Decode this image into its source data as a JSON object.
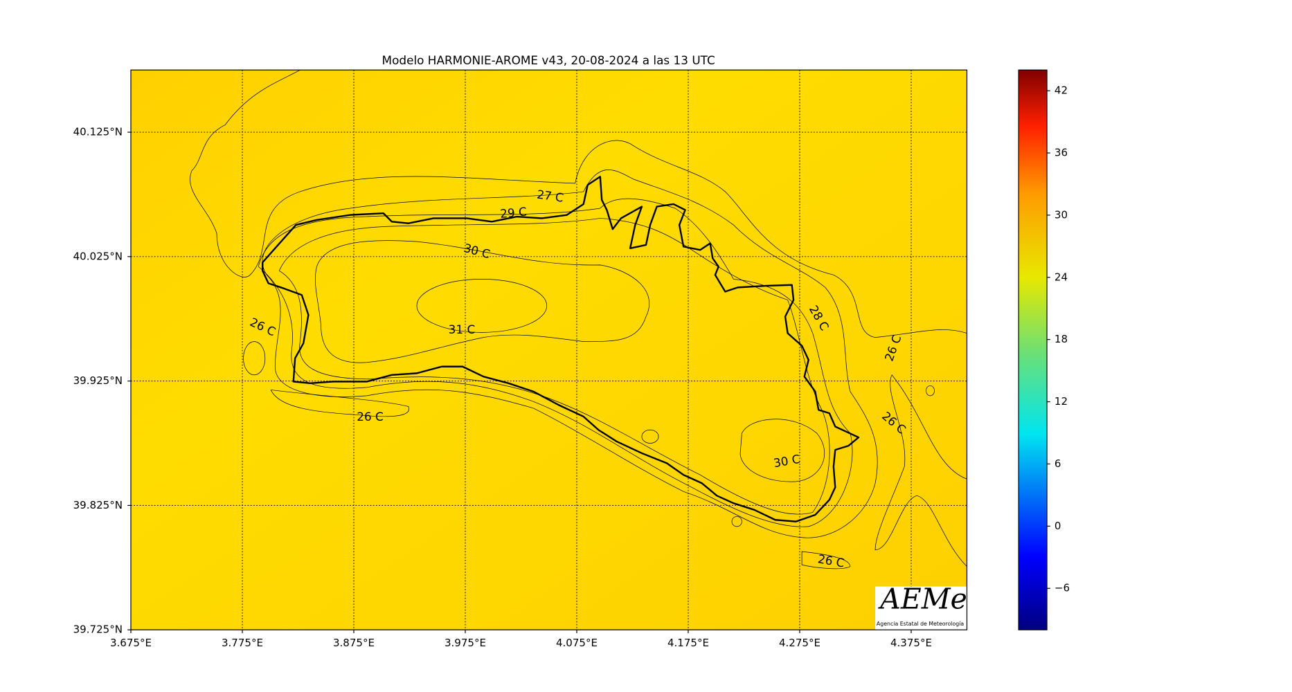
{
  "title": "Modelo HARMONIE-AROME v43, 20-08-2024 a las 13 UTC",
  "map": {
    "xlim": [
      3.675,
      4.425
    ],
    "ylim": [
      39.725,
      40.175
    ],
    "grid": true,
    "xticks": [
      {
        "value": 3.675,
        "label": "3.675°E"
      },
      {
        "value": 3.775,
        "label": "3.775°E"
      },
      {
        "value": 3.875,
        "label": "3.875°E"
      },
      {
        "value": 3.975,
        "label": "3.975°E"
      },
      {
        "value": 4.075,
        "label": "4.075°E"
      },
      {
        "value": 4.175,
        "label": "4.175°E"
      },
      {
        "value": 4.275,
        "label": "4.275°E"
      },
      {
        "value": 4.375,
        "label": "4.375°E"
      }
    ],
    "yticks": [
      {
        "value": 39.725,
        "label": "39.725°N"
      },
      {
        "value": 39.825,
        "label": "39.825°N"
      },
      {
        "value": 39.925,
        "label": "39.925°N"
      },
      {
        "value": 40.025,
        "label": "40.025°N"
      },
      {
        "value": 40.125,
        "label": "40.125°N"
      }
    ]
  },
  "colorbar": {
    "clim": [
      -10,
      44
    ],
    "ticks": [
      {
        "value": -6,
        "label": "−6"
      },
      0,
      6,
      12,
      18,
      24,
      30,
      36,
      42
    ]
  },
  "contour_labels": [
    "27 C",
    "29 C",
    "30 C",
    "31 C",
    "26 C",
    "26 C",
    "28 C",
    "26 C",
    "26 C",
    "30 C",
    "26 C"
  ],
  "logo": {
    "name": "AEMet",
    "text": "Agencia Estatal de Meteorología"
  }
}
